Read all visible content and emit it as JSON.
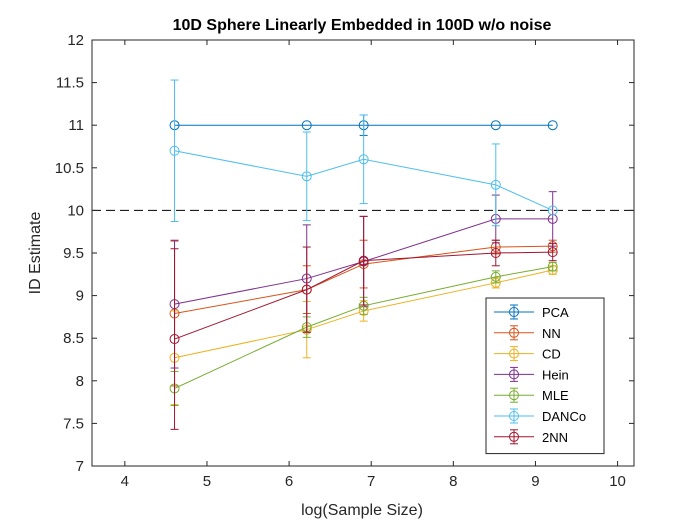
{
  "chart_data": {
    "type": "line",
    "title": "10D Sphere Linearly Embedded in 100D w/o noise",
    "xlabel": "log(Sample Size)",
    "ylabel": "ID Estimate",
    "xlim": [
      3.6,
      10.2
    ],
    "ylim": [
      7,
      12
    ],
    "xticks": [
      4,
      5,
      6,
      7,
      8,
      9,
      10
    ],
    "xtick_labels": [
      "4",
      "5",
      "6",
      "7",
      "8",
      "9",
      "10"
    ],
    "yticks": [
      7,
      7.5,
      8,
      8.5,
      9,
      9.5,
      10,
      10.5,
      11,
      11.5,
      12
    ],
    "ytick_labels": [
      "7",
      "7.5",
      "8",
      "8.5",
      "9",
      "9.5",
      "10",
      "10.5",
      "11",
      "11.5",
      "12"
    ],
    "reference_line": {
      "y": 10,
      "style": "dashed",
      "color": "#000000"
    },
    "grid": false,
    "legend_position": "bottom-right",
    "x": [
      4.605,
      6.215,
      6.908,
      8.517,
      9.21
    ],
    "series": [
      {
        "name": "PCA",
        "color": "#0072BD",
        "values": [
          11.0,
          11.0,
          11.0,
          11.0,
          11.0
        ],
        "err": [
          0.0,
          0.0,
          0.12,
          0.0,
          0.0
        ]
      },
      {
        "name": "NN",
        "color": "#D95319",
        "values": [
          8.79,
          9.07,
          9.37,
          9.57,
          9.58
        ],
        "err": [
          0.85,
          0.28,
          0.28,
          0.08,
          0.07
        ]
      },
      {
        "name": "CD",
        "color": "#EDB120",
        "values": [
          8.27,
          8.6,
          8.82,
          9.15,
          9.3
        ],
        "err": [
          0.55,
          0.33,
          0.12,
          0.06,
          0.05
        ]
      },
      {
        "name": "Hein",
        "color": "#7E2F8E",
        "values": [
          8.9,
          9.2,
          9.4,
          9.9,
          9.9
        ],
        "err": [
          0.75,
          0.63,
          0.53,
          0.28,
          0.32
        ]
      },
      {
        "name": "MLE",
        "color": "#77AC30",
        "values": [
          7.91,
          8.63,
          8.88,
          9.22,
          9.34
        ],
        "err": [
          0.2,
          0.12,
          0.1,
          0.07,
          0.05
        ]
      },
      {
        "name": "DANCo",
        "color": "#4DBEEE",
        "values": [
          10.7,
          10.4,
          10.6,
          10.3,
          10.0
        ],
        "err": [
          0.83,
          0.52,
          0.52,
          0.48,
          0.0
        ]
      },
      {
        "name": "2NN",
        "color": "#A2142F",
        "values": [
          8.49,
          9.07,
          9.41,
          9.5,
          9.51
        ],
        "err": [
          1.06,
          0.5,
          0.52,
          0.15,
          0.1
        ]
      }
    ]
  }
}
